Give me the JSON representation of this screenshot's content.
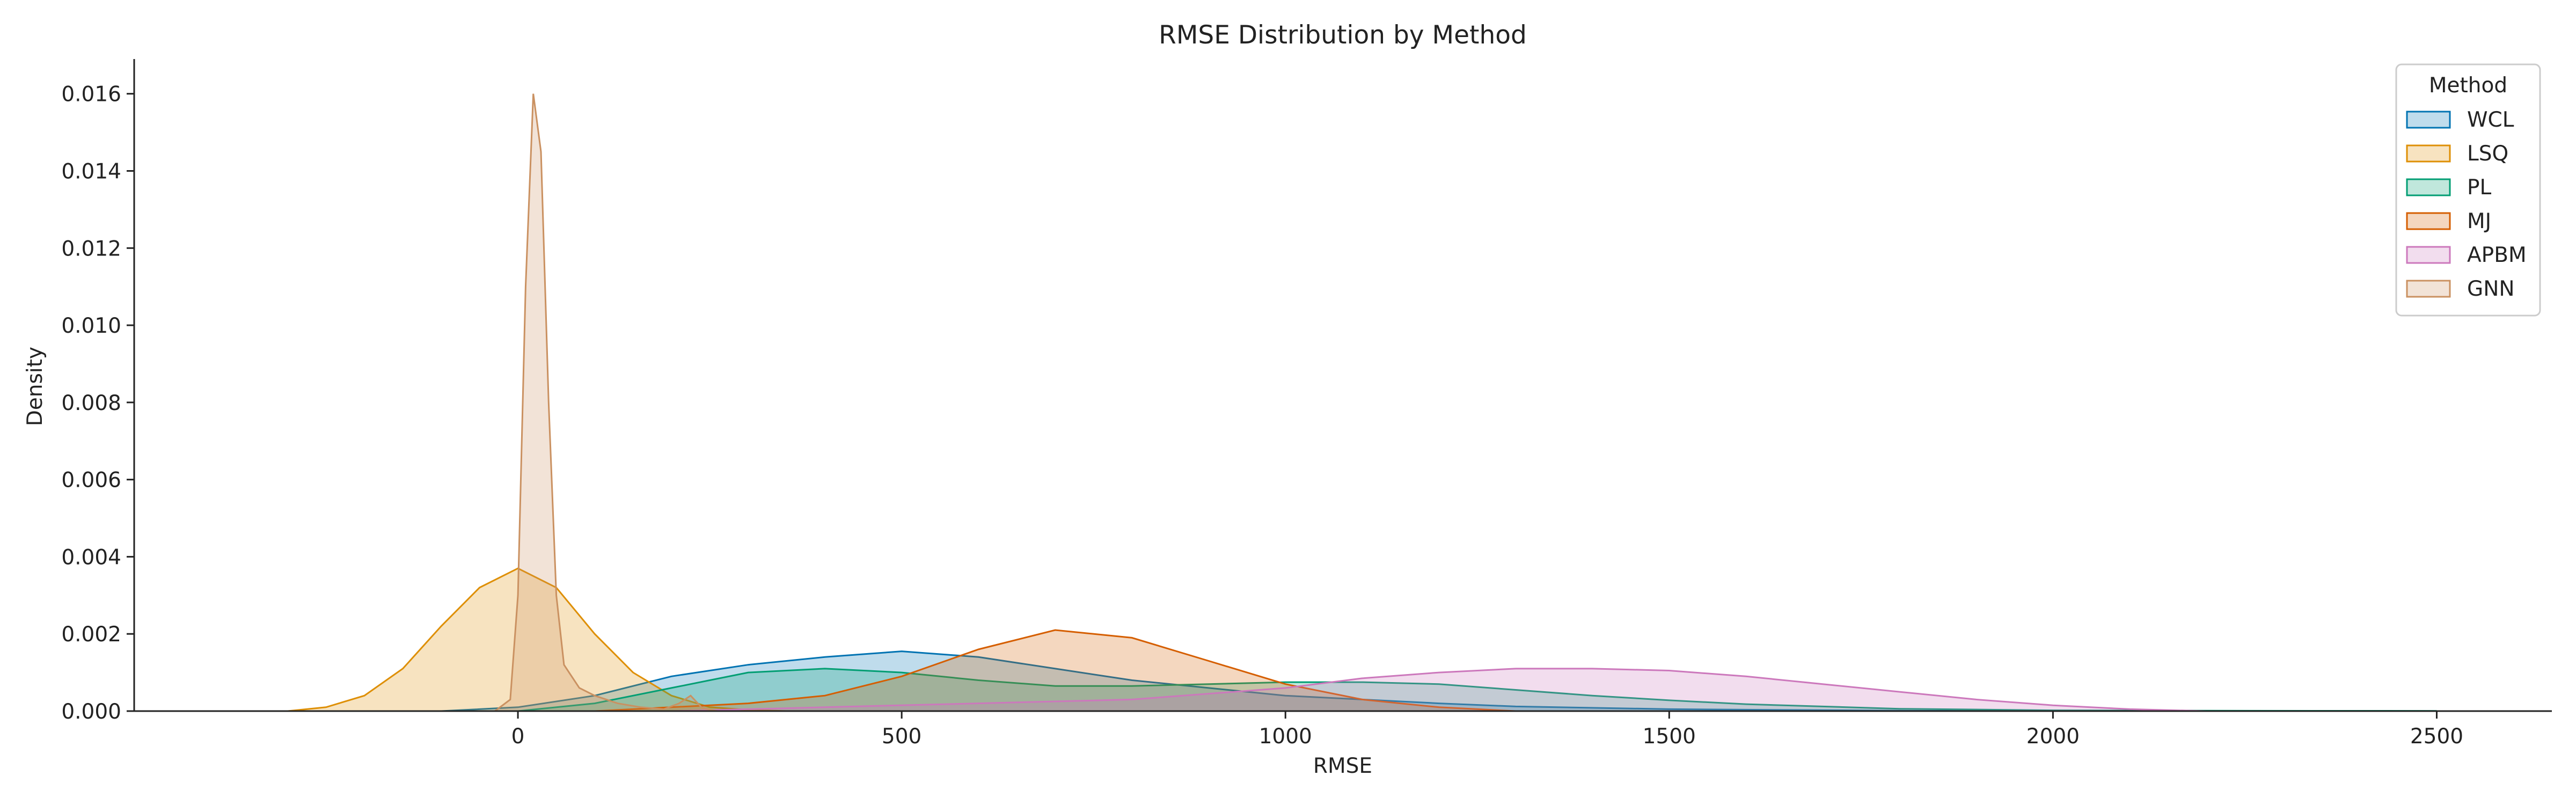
{
  "chart_data": {
    "type": "area",
    "title": "RMSE Distribution by Method",
    "xlabel": "RMSE",
    "ylabel": "Density",
    "xlim": [
      -500,
      2650
    ],
    "ylim": [
      0,
      0.0169
    ],
    "xticks": [
      0,
      500,
      1000,
      1500,
      2000,
      2500
    ],
    "yticks": [
      0.0,
      0.002,
      0.004,
      0.006,
      0.008,
      0.01,
      0.012,
      0.014,
      0.016
    ],
    "ytick_labels": [
      "0.000",
      "0.002",
      "0.004",
      "0.006",
      "0.008",
      "0.010",
      "0.012",
      "0.014",
      "0.016"
    ],
    "grid": false,
    "legend": {
      "title": "Method",
      "position": "top-right"
    },
    "series": [
      {
        "name": "WCL",
        "color": "#0173b2",
        "x": [
          -100,
          0,
          100,
          200,
          300,
          400,
          500,
          600,
          700,
          800,
          900,
          1000,
          1100,
          1200,
          1300,
          1500,
          1800,
          2000
        ],
        "y": [
          0,
          0.0001,
          0.0004,
          0.0009,
          0.0012,
          0.0014,
          0.00155,
          0.0014,
          0.0011,
          0.0008,
          0.0006,
          0.0004,
          0.0003,
          0.0002,
          0.00012,
          5e-05,
          1e-05,
          0
        ]
      },
      {
        "name": "LSQ",
        "color": "#de8f05",
        "x": [
          -300,
          -250,
          -200,
          -150,
          -100,
          -50,
          0,
          50,
          100,
          150,
          200,
          250,
          300,
          350
        ],
        "y": [
          0,
          0.0001,
          0.0004,
          0.0011,
          0.0022,
          0.0032,
          0.0037,
          0.0032,
          0.002,
          0.001,
          0.0004,
          0.0001,
          3e-05,
          0
        ]
      },
      {
        "name": "PL",
        "color": "#029e73",
        "x": [
          0,
          100,
          200,
          300,
          400,
          500,
          600,
          700,
          800,
          900,
          1000,
          1100,
          1200,
          1300,
          1400,
          1500,
          1600,
          1800,
          2000,
          2200,
          2500
        ],
        "y": [
          0,
          0.0002,
          0.0006,
          0.001,
          0.0011,
          0.001,
          0.0008,
          0.00065,
          0.00065,
          0.0007,
          0.00075,
          0.00075,
          0.0007,
          0.00055,
          0.0004,
          0.00028,
          0.00018,
          6e-05,
          2e-05,
          1e-05,
          5e-06
        ]
      },
      {
        "name": "MJ",
        "color": "#d55e00",
        "x": [
          100,
          200,
          300,
          400,
          500,
          600,
          700,
          800,
          900,
          1000,
          1100,
          1200,
          1300
        ],
        "y": [
          0,
          0.0001,
          0.0002,
          0.0004,
          0.0009,
          0.0016,
          0.0021,
          0.0019,
          0.0013,
          0.0007,
          0.0003,
          0.0001,
          0
        ]
      },
      {
        "name": "APBM",
        "color": "#cc78bc",
        "x": [
          200,
          400,
          600,
          800,
          1000,
          1100,
          1200,
          1300,
          1400,
          1500,
          1600,
          1700,
          1800,
          1900,
          2000,
          2100,
          2200
        ],
        "y": [
          0,
          0.0001,
          0.0002,
          0.0003,
          0.0006,
          0.00085,
          0.001,
          0.0011,
          0.0011,
          0.00105,
          0.0009,
          0.0007,
          0.0005,
          0.0003,
          0.00015,
          5e-05,
          0
        ]
      },
      {
        "name": "GNN",
        "color": "#ca9161",
        "x": [
          -30,
          -10,
          0,
          10,
          20,
          30,
          40,
          50,
          60,
          80,
          100,
          130,
          160,
          190,
          210,
          225,
          240,
          260
        ],
        "y": [
          0,
          0.0003,
          0.003,
          0.011,
          0.016,
          0.0145,
          0.008,
          0.003,
          0.0012,
          0.0006,
          0.0004,
          0.0002,
          0.0001,
          5e-05,
          0.0002,
          0.0004,
          8e-05,
          0
        ]
      }
    ]
  }
}
